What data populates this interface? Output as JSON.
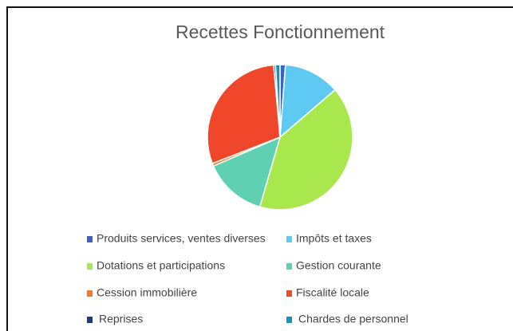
{
  "chart_data": {
    "type": "pie",
    "title": "Recettes Fonctionnement",
    "categories": [
      "Produits services, ventes diverses",
      "Impôts et taxes",
      "Dotations et participations",
      "Gestion courante",
      "Cession immobilière",
      "Fiscalité locale",
      "Reprises",
      "Chardes de personnel"
    ],
    "values": [
      1.2,
      12.5,
      40.8,
      14,
      0.6,
      29.5,
      0.4,
      1.0
    ],
    "colors": [
      "#3d62c4",
      "#5ec9f2",
      "#a8e84c",
      "#5fd1b2",
      "#f27c2e",
      "#f0472a",
      "#1f3a7c",
      "#1a90c2"
    ],
    "legend": "bottom"
  }
}
